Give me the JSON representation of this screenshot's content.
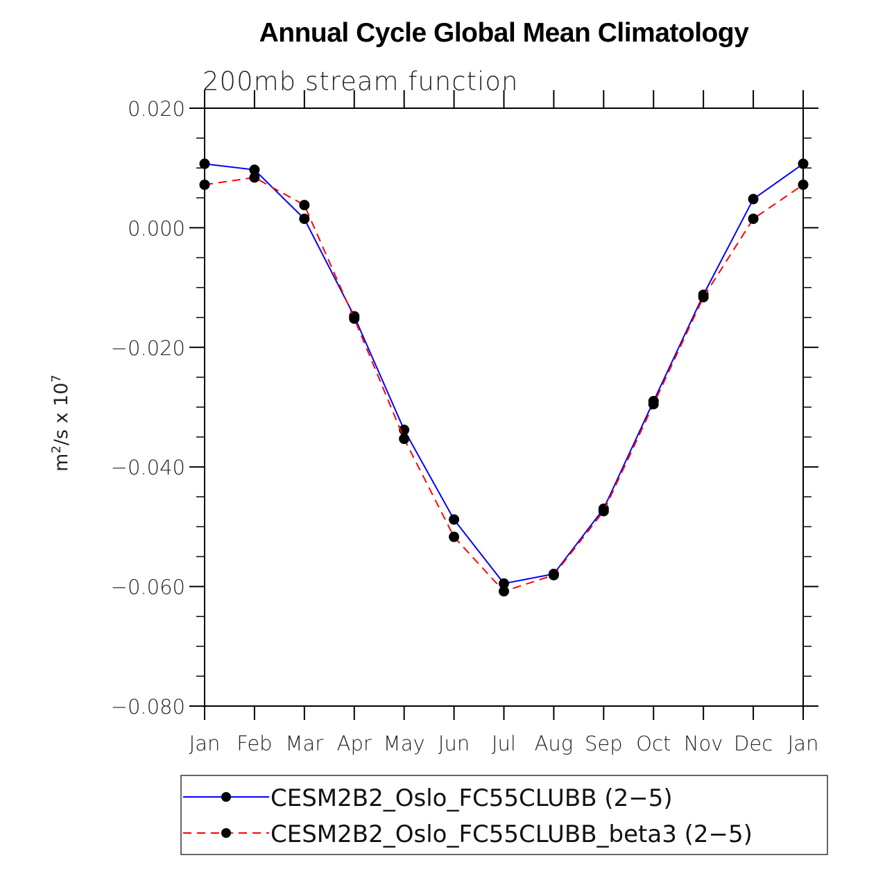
{
  "chart_data": {
    "type": "line",
    "title": "Annual Cycle Global Mean Climatology",
    "subtitle": "200mb stream function",
    "xlabel": "",
    "ylabel": "m²/s x 10⁷",
    "ylabel_parts": {
      "base": "m",
      "exp1": "2",
      "mid": "/s x 10",
      "exp2": "7"
    },
    "categories": [
      "Jan",
      "Feb",
      "Mar",
      "Apr",
      "May",
      "Jun",
      "Jul",
      "Aug",
      "Sep",
      "Oct",
      "Nov",
      "Dec",
      "Jan"
    ],
    "ylim": [
      -0.08,
      0.02
    ],
    "yticks": [
      0.02,
      0.0,
      -0.02,
      -0.04,
      -0.06,
      -0.08
    ],
    "ytick_labels": [
      "0.020",
      "0.000",
      "−0.020",
      "−0.040",
      "−0.060",
      "−0.080"
    ],
    "yminor_step": 0.005,
    "grid": false,
    "legend_position": "bottom",
    "series": [
      {
        "name": "CESM2B2_Oslo_FC55CLUBB (2−5)",
        "color": "#0000ff",
        "dash": "solid",
        "marker": "filled-circle",
        "values": [
          0.0107,
          0.0097,
          0.0015,
          -0.0148,
          -0.0338,
          -0.0488,
          -0.0595,
          -0.0579,
          -0.047,
          -0.029,
          -0.0112,
          0.0048,
          0.0107
        ]
      },
      {
        "name": "CESM2B2_Oslo_FC55CLUBB_beta3 (2−5)",
        "color": "#ff0000",
        "dash": "dashed",
        "marker": "filled-circle",
        "values": [
          0.0072,
          0.0084,
          0.0038,
          -0.0152,
          -0.0353,
          -0.0517,
          -0.0608,
          -0.0581,
          -0.0474,
          -0.0295,
          -0.0116,
          0.0015,
          0.0072
        ]
      }
    ]
  }
}
